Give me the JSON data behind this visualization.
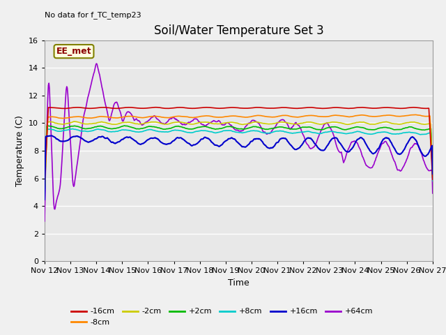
{
  "title": "Soil/Water Temperature Set 3",
  "xlabel": "Time",
  "ylabel": "Temperature (C)",
  "annotation": "No data for f_TC_temp23",
  "legend_label": "EE_met",
  "ylim": [
    0,
    16
  ],
  "yticks": [
    0,
    2,
    4,
    6,
    8,
    10,
    12,
    14,
    16
  ],
  "xtick_labels": [
    "Nov 12",
    "Nov 13",
    "Nov 14",
    "Nov 15",
    "Nov 16",
    "Nov 17",
    "Nov 18",
    "Nov 19",
    "Nov 20",
    "Nov 21",
    "Nov 22",
    "Nov 23",
    "Nov 24",
    "Nov 25",
    "Nov 26",
    "Nov 27"
  ],
  "series": {
    "-16cm": {
      "color": "#cc0000",
      "lw": 1.2
    },
    "-8cm": {
      "color": "#ff8800",
      "lw": 1.2
    },
    "-2cm": {
      "color": "#cccc00",
      "lw": 1.2
    },
    "+2cm": {
      "color": "#00bb00",
      "lw": 1.2
    },
    "+8cm": {
      "color": "#00cccc",
      "lw": 1.2
    },
    "+16cm": {
      "color": "#0000cc",
      "lw": 1.5
    },
    "+64cm": {
      "color": "#9900cc",
      "lw": 1.2
    }
  },
  "plot_bg": "#e8e8e8",
  "title_fontsize": 12,
  "axis_fontsize": 9,
  "tick_fontsize": 8
}
